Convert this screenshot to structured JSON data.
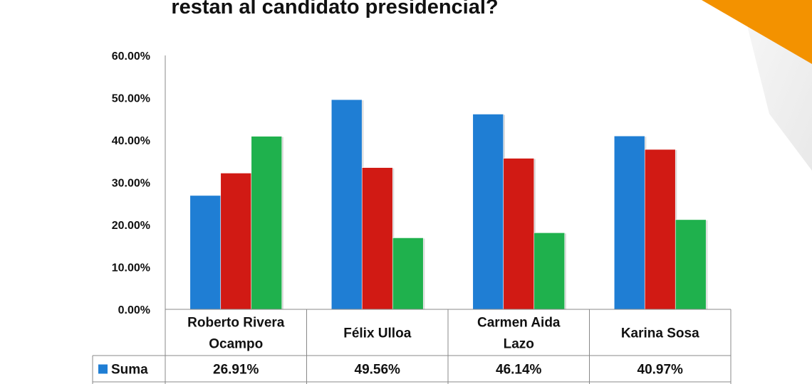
{
  "title": "restan al candidato presidencial?",
  "colors": {
    "series0": "#1f7ed4",
    "series1": "#d11a14",
    "series2": "#1fb14d",
    "accent": "#f39200"
  },
  "chart_data": {
    "type": "bar",
    "title": "restan al candidato presidencial?",
    "categories": [
      [
        "Roberto Rivera",
        "Ocampo"
      ],
      [
        "Félix Ulloa"
      ],
      [
        "Carmen Aida",
        "Lazo"
      ],
      [
        "Karina Sosa"
      ]
    ],
    "yticks": [
      "60.00%",
      "50.00%",
      "40.00%",
      "30.00%",
      "20.00%",
      "10.00%",
      "0.00%"
    ],
    "ylim": [
      0,
      60
    ],
    "grid": false,
    "series": [
      {
        "name": "Suma",
        "color": "#1f7ed4",
        "values": [
          26.91,
          49.56,
          46.14,
          40.97
        ],
        "labels": [
          "26.91%",
          "49.56%",
          "46.14%",
          "40.97%"
        ]
      },
      {
        "color": "#d11a14",
        "values": [
          32.2,
          33.5,
          35.7,
          37.8
        ]
      },
      {
        "color": "#1fb14d",
        "values": [
          40.9,
          16.9,
          18.1,
          21.2
        ]
      }
    ]
  }
}
